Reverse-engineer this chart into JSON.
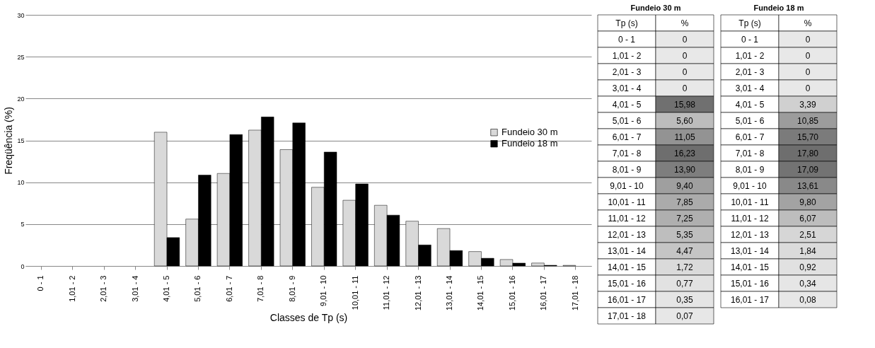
{
  "chart_data": [
    {
      "type": "bar",
      "xlabel": "Classes de Tp (s)",
      "ylabel": "Freqüência (%)",
      "categories": [
        "0 - 1",
        "1,01 - 2",
        "2,01 - 3",
        "3,01 - 4",
        "4,01 - 5",
        "5,01 - 6",
        "6,01 - 7",
        "7,01 - 8",
        "8,01 - 9",
        "9,01 - 10",
        "10,01 - 11",
        "11,01 - 12",
        "12,01 - 13",
        "13,01 - 14",
        "14,01 - 15",
        "15,01 - 16",
        "16,01 - 17",
        "17,01 - 18"
      ],
      "series": [
        {
          "name": "Fundeio 30 m",
          "color": "#d9d9d9",
          "values": [
            0,
            0,
            0,
            0,
            15.98,
            5.6,
            11.05,
            16.23,
            13.9,
            9.4,
            7.85,
            7.25,
            5.35,
            4.47,
            1.72,
            0.77,
            0.35,
            0.07
          ]
        },
        {
          "name": "Fundeio 18 m",
          "color": "#000000",
          "values": [
            0,
            0,
            0,
            0,
            3.39,
            10.85,
            15.7,
            17.8,
            17.09,
            13.61,
            9.8,
            6.07,
            2.51,
            1.84,
            0.92,
            0.34,
            0.08,
            null
          ]
        }
      ],
      "ylim": [
        0,
        30
      ],
      "yticks": [
        0,
        5,
        10,
        15,
        20,
        25,
        30
      ],
      "grid": "y",
      "legend": "right"
    },
    {
      "type": "heatmap",
      "title": "Fundeio 30 m",
      "ylabel": "Tp (s)",
      "categories": [
        "%"
      ],
      "y_categories": [
        "0 - 1",
        "1,01 - 2",
        "2,01 - 3",
        "3,01 - 4",
        "4,01 - 5",
        "5,01 - 6",
        "6,01 - 7",
        "7,01 - 8",
        "8,01 - 9",
        "9,01 - 10",
        "10,01 - 11",
        "11,01 - 12",
        "12,01 - 13",
        "13,01 - 14",
        "14,01 - 15",
        "15,01 - 16",
        "16,01 - 17",
        "17,01 - 18"
      ],
      "cells": [
        [
          0
        ],
        [
          0
        ],
        [
          0
        ],
        [
          0
        ],
        [
          15.98
        ],
        [
          5.6
        ],
        [
          11.05
        ],
        [
          16.23
        ],
        [
          13.9
        ],
        [
          9.4
        ],
        [
          7.85
        ],
        [
          7.25
        ],
        [
          5.35
        ],
        [
          4.47
        ],
        [
          1.72
        ],
        [
          0.77
        ],
        [
          0.35
        ],
        [
          0.07
        ]
      ],
      "cell_labels": [
        [
          "0"
        ],
        [
          "0"
        ],
        [
          "0"
        ],
        [
          "0"
        ],
        [
          "15,98"
        ],
        [
          "5,60"
        ],
        [
          "11,05"
        ],
        [
          "16,23"
        ],
        [
          "13,90"
        ],
        [
          "9,40"
        ],
        [
          "7,85"
        ],
        [
          "7,25"
        ],
        [
          "5,35"
        ],
        [
          "4,47"
        ],
        [
          "1,72"
        ],
        [
          "0,77"
        ],
        [
          "0,35"
        ],
        [
          "0,07"
        ]
      ]
    },
    {
      "type": "heatmap",
      "title": "Fundeio 18 m",
      "ylabel": "Tp (s)",
      "categories": [
        "%"
      ],
      "y_categories": [
        "0 - 1",
        "1,01 - 2",
        "2,01 - 3",
        "3,01 - 4",
        "4,01 - 5",
        "5,01 - 6",
        "6,01 - 7",
        "7,01 - 8",
        "8,01 - 9",
        "9,01 - 10",
        "10,01 - 11",
        "11,01 - 12",
        "12,01 - 13",
        "13,01 - 14",
        "14,01 - 15",
        "15,01 - 16",
        "16,01 - 17"
      ],
      "cells": [
        [
          0
        ],
        [
          0
        ],
        [
          0
        ],
        [
          0
        ],
        [
          3.39
        ],
        [
          10.85
        ],
        [
          15.7
        ],
        [
          17.8
        ],
        [
          17.09
        ],
        [
          13.61
        ],
        [
          9.8
        ],
        [
          6.07
        ],
        [
          2.51
        ],
        [
          1.84
        ],
        [
          0.92
        ],
        [
          0.34
        ],
        [
          0.08
        ]
      ],
      "cell_labels": [
        [
          "0"
        ],
        [
          "0"
        ],
        [
          "0"
        ],
        [
          "0"
        ],
        [
          "3,39"
        ],
        [
          "10,85"
        ],
        [
          "15,70"
        ],
        [
          "17,80"
        ],
        [
          "17,09"
        ],
        [
          "13,61"
        ],
        [
          "9,80"
        ],
        [
          "6,07"
        ],
        [
          "2,51"
        ],
        [
          "1,84"
        ],
        [
          "0,92"
        ],
        [
          "0,34"
        ],
        [
          "0,08"
        ]
      ]
    }
  ]
}
